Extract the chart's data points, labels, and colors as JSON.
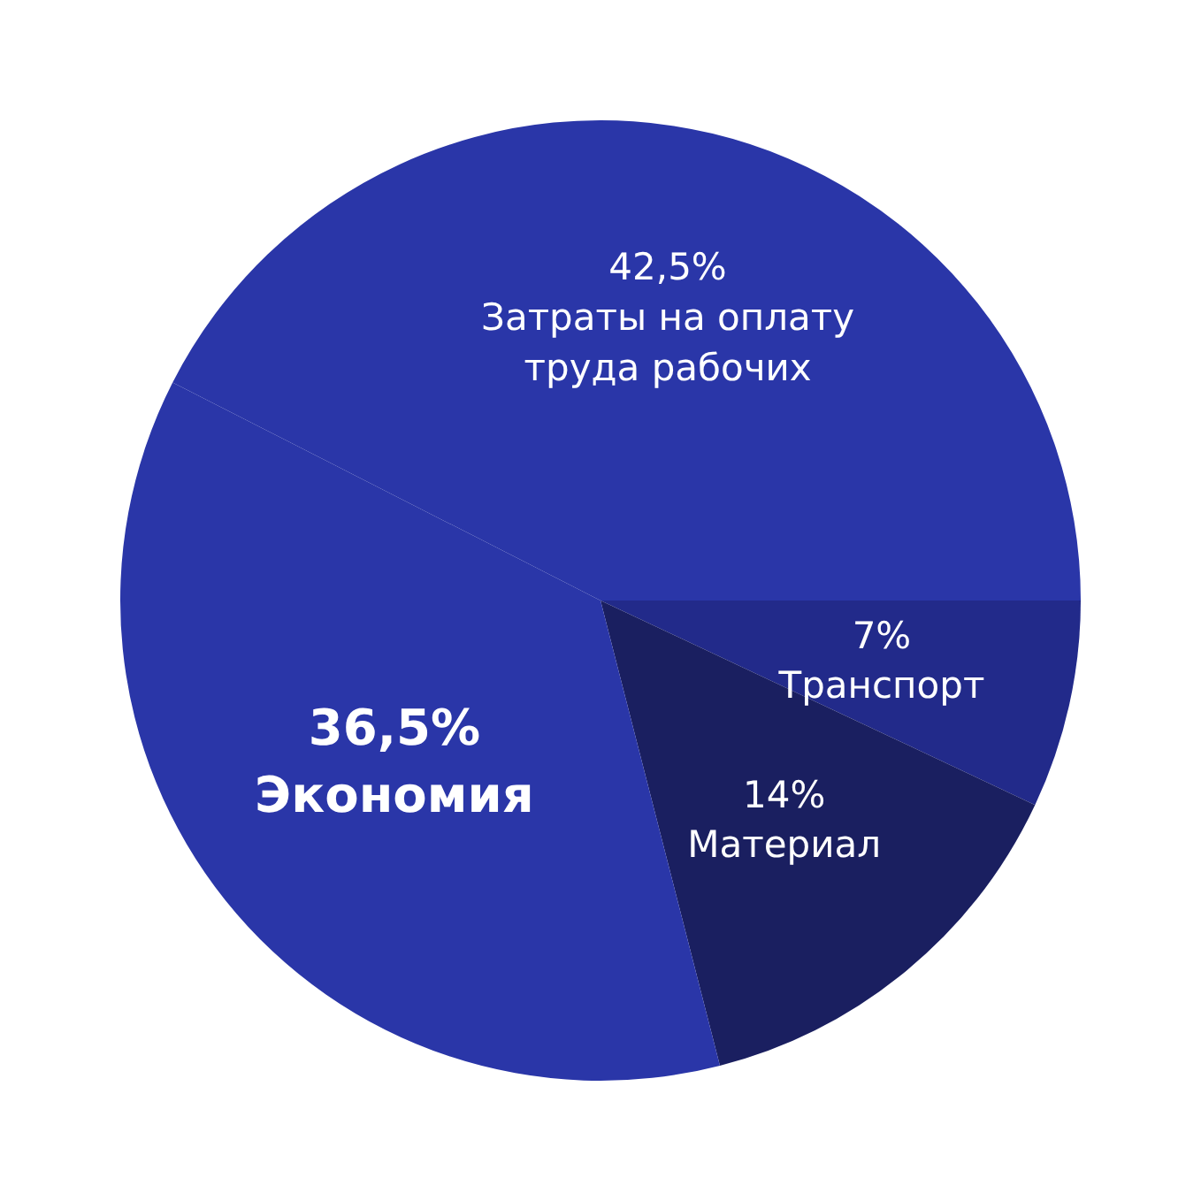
{
  "chart_data": {
    "type": "pie",
    "categories": [
      "Затраты на оплату труда рабочих",
      "Транспорт",
      "Материал",
      "Экономия"
    ],
    "values": [
      42.5,
      7,
      14,
      36.5
    ],
    "value_labels": [
      "42,5%",
      "7%",
      "14%",
      "36,5%"
    ],
    "colors": [
      "#2a36a8",
      "#222a8a",
      "#1a1f60",
      "#2a36a8"
    ],
    "legend": false
  }
}
